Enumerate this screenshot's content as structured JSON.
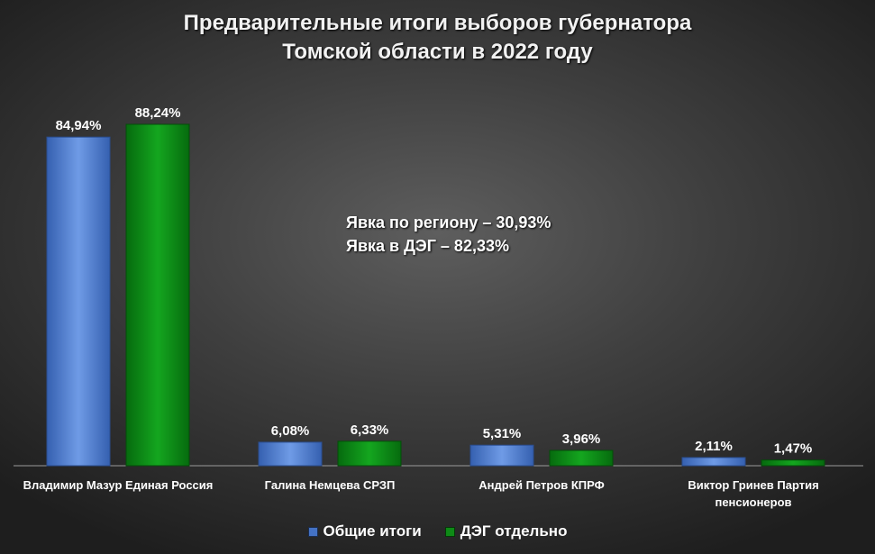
{
  "chart_data": {
    "type": "bar",
    "title": [
      "Предварительные итоги выборов губернатора",
      "Томской области в 2022 году"
    ],
    "annotations": [
      "Явка по региону – 30,93%",
      "Явка в ДЭГ – 82,33%"
    ],
    "categories": [
      [
        "Владимир Мазур  Единая Россия"
      ],
      [
        "Галина Немцева  СРЗП"
      ],
      [
        "Андрей Петров  КПРФ"
      ],
      [
        "Виктор Гринев  Партия",
        "пенсионеров"
      ]
    ],
    "series": [
      {
        "name": "Общие итоги",
        "color": "#4472c4",
        "values": [
          84.94,
          6.08,
          5.31,
          2.11
        ],
        "labels": [
          "84,94%",
          "6,08%",
          "5,31%",
          "2,11%"
        ]
      },
      {
        "name": "ДЭГ отдельно",
        "color": "#0e8a16",
        "values": [
          88.24,
          6.33,
          3.96,
          1.47
        ],
        "labels": [
          "88,24%",
          "6,33%",
          "3,96%",
          "1,47%"
        ]
      }
    ],
    "ylim": [
      0,
      88.24
    ],
    "grid": false,
    "legend_position": "bottom"
  }
}
